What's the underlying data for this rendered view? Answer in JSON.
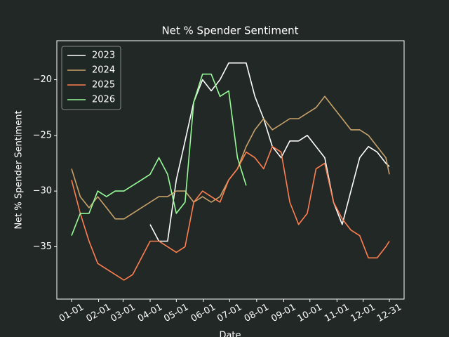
{
  "chart_data": {
    "type": "line",
    "title": "Net % Spender Sentiment",
    "xlabel": "Date",
    "ylabel": "Net % Spender Sentiment",
    "x": [
      "01-01",
      "01-11",
      "01-21",
      "01-31",
      "02-10",
      "02-20",
      "03-02",
      "03-12",
      "03-22",
      "04-01",
      "04-11",
      "04-21",
      "05-01",
      "05-11",
      "05-21",
      "05-31",
      "06-10",
      "06-20",
      "06-30",
      "07-10",
      "07-20",
      "07-30",
      "08-09",
      "08-19",
      "08-29",
      "09-08",
      "09-18",
      "09-28",
      "10-08",
      "10-18",
      "10-28",
      "11-07",
      "11-17",
      "11-27",
      "12-07",
      "12-17",
      "12-27",
      "12-31"
    ],
    "xticks": [
      "01-01",
      "02-01",
      "03-01",
      "04-01",
      "05-01",
      "06-01",
      "07-01",
      "08-01",
      "09-01",
      "10-01",
      "11-01",
      "12-01",
      "12-31"
    ],
    "ylim": [
      -39.7,
      -16.5
    ],
    "yticks": [
      {
        "value": -20,
        "label": "−20"
      },
      {
        "value": -25,
        "label": "−25"
      },
      {
        "value": -30,
        "label": "−30"
      },
      {
        "value": -35,
        "label": "−35"
      }
    ],
    "legend": "upper left",
    "series": [
      {
        "name": "2023",
        "color": "#ffffff",
        "values": [
          null,
          null,
          null,
          null,
          null,
          null,
          null,
          null,
          null,
          -33,
          -34.5,
          -34.5,
          -29,
          -25.5,
          -22,
          -20,
          -21,
          -20,
          -18.5,
          -18.5,
          -18.5,
          -21.5,
          -23.5,
          -26,
          -27,
          -25.5,
          -25.5,
          -25,
          -26,
          -27,
          -31,
          -33,
          -30,
          -27,
          -26,
          -26.5,
          -27.5,
          -27.8
        ]
      },
      {
        "name": "2024",
        "color": "#c8a26a",
        "values": [
          -28,
          -30.5,
          -31.5,
          -30.5,
          -31.5,
          -32.5,
          -32.5,
          -32,
          -31.5,
          -31,
          -30.5,
          -30.5,
          -30,
          -30,
          -31,
          -30.5,
          -31,
          -30.5,
          -29,
          -28,
          -26,
          -24.5,
          -23.5,
          -24.5,
          -24,
          -23.5,
          -23.5,
          -23,
          -22.5,
          -21.5,
          -22.5,
          -23.5,
          -24.5,
          -24.5,
          -25,
          -26,
          -27,
          -28.5
        ]
      },
      {
        "name": "2025",
        "color": "#ff7f50",
        "values": [
          -29,
          -32,
          -34.5,
          -36.5,
          -37,
          -37.5,
          -38,
          -37.5,
          -36,
          -34.5,
          -34.5,
          -35,
          -35.5,
          -35,
          -31,
          -30,
          -30.5,
          -31,
          -29,
          -28,
          -26.5,
          -27,
          -28,
          -26,
          -26.5,
          -31,
          -33,
          -32,
          -28,
          -27.5,
          -31,
          -32.5,
          -33.5,
          -34,
          -36,
          -36,
          -35,
          -34.5
        ]
      },
      {
        "name": "2026",
        "color": "#98fb98",
        "values": [
          -34,
          -32,
          -32,
          -30,
          -30.5,
          -30,
          -30,
          -29.5,
          -29,
          -28.5,
          -27,
          -28.5,
          -32,
          -31,
          -22,
          -19.5,
          -19.5,
          -21.5,
          -21,
          -27,
          -29.5,
          null,
          null,
          null,
          null,
          null,
          null,
          null,
          null,
          null,
          null,
          null,
          null,
          null,
          null,
          null,
          null,
          null
        ]
      }
    ]
  }
}
